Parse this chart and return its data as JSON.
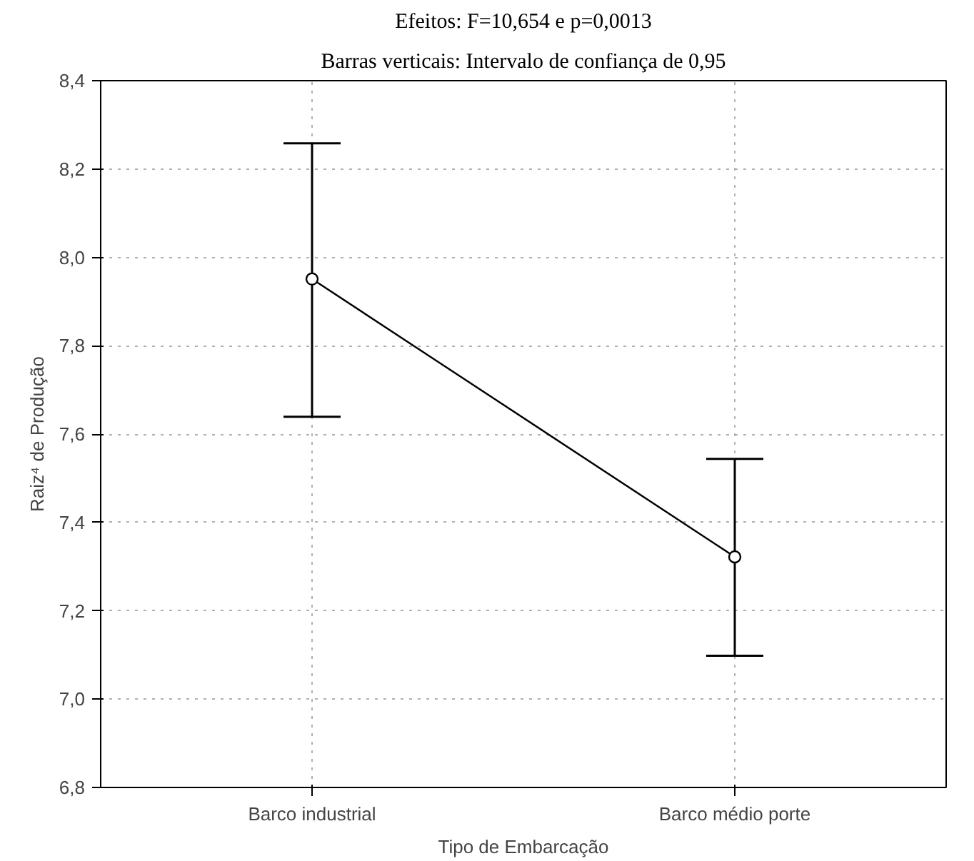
{
  "chart_data": {
    "type": "line",
    "title": "Efeitos: F=10,654 e p=0,0013",
    "subtitle": "Barras verticais: Intervalo de confiança de 0,95",
    "xlabel": "Tipo de Embarcação",
    "ylabel": "Raiz⁴ de Produção",
    "categories": [
      "Barco industrial",
      "Barco médio porte"
    ],
    "series": [
      {
        "color": "#000000",
        "values": [
          7.951,
          7.322
        ],
        "errors": [
          [
            7.639,
            8.258
          ],
          [
            7.098,
            7.544
          ]
        ]
      }
    ],
    "ylim": [
      6.8,
      8.4
    ],
    "yticks": [
      {
        "value": 6.8,
        "label": "6,8"
      },
      {
        "value": 7.0,
        "label": "7,0"
      },
      {
        "value": 7.2,
        "label": "7,2"
      },
      {
        "value": 7.4,
        "label": "7,4"
      },
      {
        "value": 7.6,
        "label": "7,6"
      },
      {
        "value": 7.8,
        "label": "7,8"
      },
      {
        "value": 8.0,
        "label": "8,0"
      },
      {
        "value": 8.2,
        "label": "8,2"
      },
      {
        "value": 8.4,
        "label": "8,4"
      }
    ],
    "grid": true,
    "marker": "circle",
    "line_style": "solid"
  }
}
